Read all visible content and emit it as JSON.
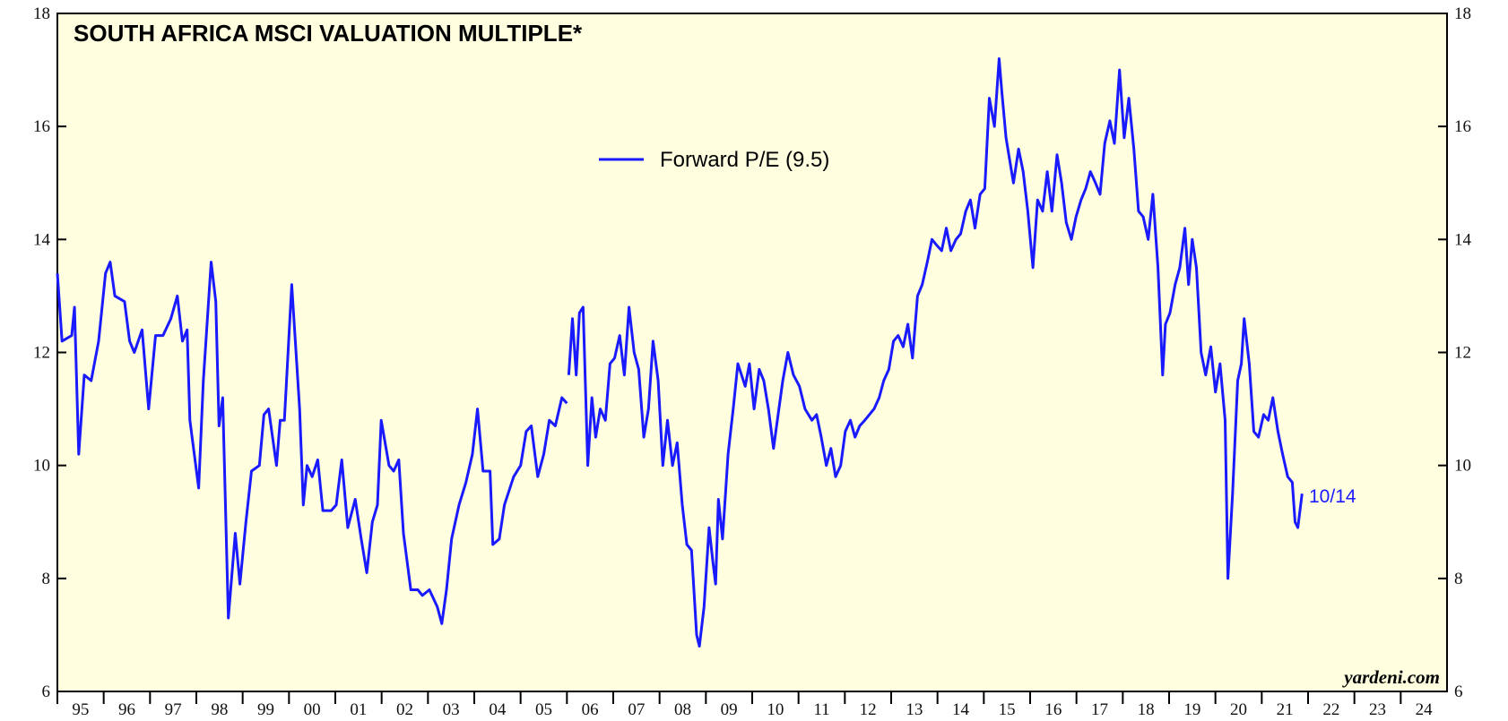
{
  "chart_data": {
    "type": "line",
    "title": "SOUTH AFRICA MSCI VALUATION MULTIPLE*",
    "annotation": "10/14",
    "source": "yardeni.com",
    "background": "#ffffe0",
    "xlim": [
      1995,
      2025
    ],
    "ylim": [
      6,
      18
    ],
    "yticks": [
      6,
      8,
      10,
      12,
      14,
      16,
      18
    ],
    "xticks": [
      {
        "value": 1995.5,
        "label": "95"
      },
      {
        "value": 1996.5,
        "label": "96"
      },
      {
        "value": 1997.5,
        "label": "97"
      },
      {
        "value": 1998.5,
        "label": "98"
      },
      {
        "value": 1999.5,
        "label": "99"
      },
      {
        "value": 2000.5,
        "label": "00"
      },
      {
        "value": 2001.5,
        "label": "01"
      },
      {
        "value": 2002.5,
        "label": "02"
      },
      {
        "value": 2003.5,
        "label": "03"
      },
      {
        "value": 2004.5,
        "label": "04"
      },
      {
        "value": 2005.5,
        "label": "05"
      },
      {
        "value": 2006.5,
        "label": "06"
      },
      {
        "value": 2007.5,
        "label": "07"
      },
      {
        "value": 2008.5,
        "label": "08"
      },
      {
        "value": 2009.5,
        "label": "09"
      },
      {
        "value": 2010.5,
        "label": "10"
      },
      {
        "value": 2011.5,
        "label": "11"
      },
      {
        "value": 2012.5,
        "label": "12"
      },
      {
        "value": 2013.5,
        "label": "13"
      },
      {
        "value": 2014.5,
        "label": "14"
      },
      {
        "value": 2015.5,
        "label": "15"
      },
      {
        "value": 2016.5,
        "label": "16"
      },
      {
        "value": 2017.5,
        "label": "17"
      },
      {
        "value": 2018.5,
        "label": "18"
      },
      {
        "value": 2019.5,
        "label": "19"
      },
      {
        "value": 2020.5,
        "label": "20"
      },
      {
        "value": 2021.5,
        "label": "21"
      },
      {
        "value": 2022.5,
        "label": "22"
      },
      {
        "value": 2023.5,
        "label": "23"
      },
      {
        "value": 2024.5,
        "label": "24"
      }
    ],
    "x": [
      1995.0,
      1995.1,
      1995.31,
      1995.37,
      1995.46,
      1995.58,
      1995.73,
      1995.89,
      1996.04,
      1996.14,
      1996.24,
      1996.45,
      1996.56,
      1996.66,
      1996.83,
      1996.97,
      1997.12,
      1997.28,
      1997.45,
      1997.59,
      1997.7,
      1997.8,
      1997.86,
      1998.05,
      1998.15,
      1998.32,
      1998.42,
      1998.49,
      1998.57,
      1998.69,
      1998.84,
      1998.94,
      1999.07,
      1999.19,
      1999.36,
      1999.46,
      1999.56,
      1999.73,
      1999.81,
      1999.9,
      2000.06,
      2000.23,
      2000.31,
      2000.39,
      2000.5,
      2000.62,
      2000.73,
      2000.91,
      2001.02,
      2001.14,
      2001.27,
      2001.43,
      2001.56,
      2001.68,
      2001.8,
      2001.91,
      2001.99,
      2002.16,
      2002.26,
      2002.37,
      2002.47,
      2002.63,
      2002.78,
      2002.88,
      2003.03,
      2003.2,
      2003.3,
      2003.4,
      2003.51,
      2003.67,
      2003.82,
      2003.96,
      2004.07,
      2004.19,
      2004.34,
      2004.4,
      2004.54,
      2004.65,
      2004.85,
      2005.0,
      2005.12,
      2005.23,
      2005.37,
      2005.5,
      2005.62,
      2005.75,
      2005.89,
      2006.0,
      2006.02,
      2006.04,
      2006.12,
      2006.2,
      2006.27,
      2006.35,
      2006.45,
      2006.54,
      2006.62,
      2006.72,
      2006.83,
      2006.93,
      2007.03,
      2007.14,
      2007.24,
      2007.34,
      2007.45,
      2007.55,
      2007.66,
      2007.76,
      2007.86,
      2007.97,
      2008.07,
      2008.17,
      2008.28,
      2008.38,
      2008.49,
      2008.59,
      2008.69,
      2008.8,
      2008.86,
      2008.96,
      2009.07,
      2009.15,
      2009.21,
      2009.27,
      2009.36,
      2009.48,
      2009.59,
      2009.69,
      2009.77,
      2009.85,
      2009.94,
      2010.04,
      2010.15,
      2010.25,
      2010.35,
      2010.46,
      2010.56,
      2010.66,
      2010.77,
      2010.89,
      2011.02,
      2011.14,
      2011.29,
      2011.39,
      2011.49,
      2011.6,
      2011.7,
      2011.8,
      2011.91,
      2012.01,
      2012.12,
      2012.22,
      2012.32,
      2012.43,
      2012.53,
      2012.63,
      2012.74,
      2012.84,
      2012.95,
      2013.05,
      2013.15,
      2013.26,
      2013.36,
      2013.46,
      2013.57,
      2013.67,
      2013.78,
      2013.88,
      2013.98,
      2014.09,
      2014.19,
      2014.29,
      2014.4,
      2014.5,
      2014.61,
      2014.71,
      2014.81,
      2014.92,
      2015.02,
      2015.12,
      2015.23,
      2015.33,
      2015.39,
      2015.48,
      2015.54,
      2015.64,
      2015.75,
      2015.85,
      2015.95,
      2016.06,
      2016.16,
      2016.27,
      2016.37,
      2016.47,
      2016.58,
      2016.68,
      2016.78,
      2016.89,
      2016.99,
      2017.1,
      2017.2,
      2017.3,
      2017.41,
      2017.51,
      2017.61,
      2017.72,
      2017.82,
      2017.93,
      2018.03,
      2018.13,
      2018.24,
      2018.34,
      2018.44,
      2018.55,
      2018.65,
      2018.76,
      2018.86,
      2018.92,
      2019.02,
      2019.13,
      2019.23,
      2019.34,
      2019.42,
      2019.5,
      2019.59,
      2019.69,
      2019.79,
      2019.9,
      2020.0,
      2020.1,
      2020.21,
      2020.27,
      2020.37,
      2020.48,
      2020.56,
      2020.62,
      2020.73,
      2020.83,
      2020.93,
      2021.04,
      2021.14,
      2021.24,
      2021.35,
      2021.45,
      2021.56,
      2021.66,
      2021.72,
      2021.78,
      2021.87
    ],
    "series": [
      {
        "name": "Forward P/E (9.5)",
        "color": "#1a1aff",
        "values": [
          13.4,
          12.2,
          12.3,
          12.8,
          10.2,
          11.6,
          11.5,
          12.2,
          13.4,
          13.6,
          13.0,
          12.9,
          12.2,
          12.0,
          12.4,
          11.0,
          12.3,
          12.3,
          12.6,
          13.0,
          12.2,
          12.4,
          10.8,
          9.6,
          11.5,
          13.6,
          12.9,
          10.7,
          11.2,
          7.3,
          8.8,
          7.9,
          9.0,
          9.9,
          10.0,
          10.9,
          11.0,
          10.0,
          10.8,
          10.8,
          13.2,
          11.0,
          9.3,
          10.0,
          9.8,
          10.1,
          9.2,
          9.2,
          9.3,
          10.1,
          8.9,
          9.4,
          8.7,
          8.1,
          9.0,
          9.3,
          10.8,
          10.0,
          9.9,
          10.1,
          8.8,
          7.8,
          7.8,
          7.7,
          7.8,
          7.5,
          7.2,
          7.8,
          8.7,
          9.3,
          9.7,
          10.2,
          11.0,
          9.9,
          9.9,
          8.6,
          8.7,
          9.3,
          9.8,
          10.0,
          10.6,
          10.7,
          9.8,
          10.2,
          10.8,
          10.7,
          11.2,
          11.1,
          null,
          11.6,
          12.6,
          11.6,
          12.7,
          12.8,
          10.0,
          11.2,
          10.5,
          11.0,
          10.8,
          11.8,
          11.9,
          12.3,
          11.6,
          12.8,
          12.0,
          11.7,
          10.5,
          11.0,
          12.2,
          11.5,
          10.0,
          10.8,
          10.0,
          10.4,
          9.3,
          8.6,
          8.5,
          7.0,
          6.8,
          7.5,
          8.9,
          8.3,
          7.9,
          9.4,
          8.7,
          10.2,
          11.0,
          11.8,
          11.6,
          11.4,
          11.8,
          11.0,
          11.7,
          11.5,
          11.0,
          10.3,
          10.9,
          11.5,
          12.0,
          11.6,
          11.4,
          11.0,
          10.8,
          10.9,
          10.5,
          10.0,
          10.3,
          9.8,
          10.0,
          10.6,
          10.8,
          10.5,
          10.7,
          10.8,
          10.9,
          11.0,
          11.2,
          11.5,
          11.7,
          12.2,
          12.3,
          12.1,
          12.5,
          11.9,
          13.0,
          13.2,
          13.6,
          14.0,
          13.9,
          13.8,
          14.2,
          13.8,
          14.0,
          14.1,
          14.5,
          14.7,
          14.2,
          14.8,
          14.9,
          16.5,
          16.0,
          17.2,
          16.6,
          15.8,
          15.5,
          15.0,
          15.6,
          15.2,
          14.5,
          13.5,
          14.7,
          14.5,
          15.2,
          14.5,
          15.5,
          15.0,
          14.3,
          14.0,
          14.4,
          14.7,
          14.9,
          15.2,
          15.0,
          14.8,
          15.7,
          16.1,
          15.7,
          17.0,
          15.8,
          16.5,
          15.6,
          14.5,
          14.4,
          14.0,
          14.8,
          13.5,
          11.6,
          12.5,
          12.7,
          13.2,
          13.5,
          14.2,
          13.2,
          14.0,
          13.5,
          12.0,
          11.6,
          12.1,
          11.3,
          11.8,
          10.8,
          8.0,
          9.5,
          11.5,
          11.8,
          12.6,
          11.8,
          10.6,
          10.5,
          10.9,
          10.8,
          11.2,
          10.6,
          10.2,
          9.8,
          9.7,
          9.0,
          8.9,
          9.5
        ]
      }
    ]
  }
}
